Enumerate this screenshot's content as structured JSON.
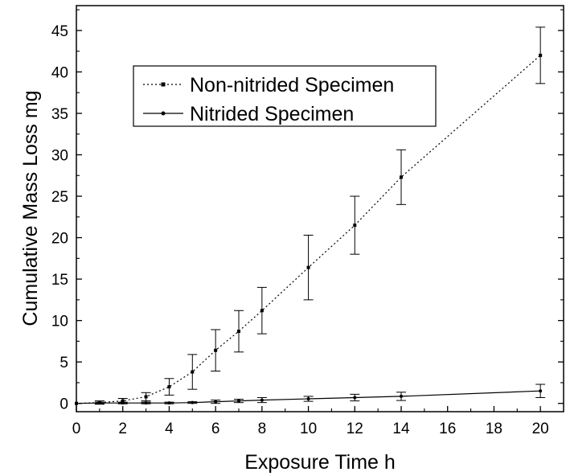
{
  "chart_data": {
    "type": "line",
    "xlabel": "Exposure Time h",
    "ylabel": "Cumulative Mass Loss mg",
    "xlim": [
      0,
      21
    ],
    "ylim": [
      -1,
      48
    ],
    "xticks": [
      0,
      2,
      4,
      6,
      8,
      10,
      12,
      14,
      16,
      18,
      20
    ],
    "yticks": [
      0,
      5,
      10,
      15,
      20,
      25,
      30,
      35,
      40,
      45
    ],
    "legend_position": "top-left",
    "series": [
      {
        "name": "Non-nitrided Specimen",
        "line_style": "dotted",
        "marker": "square",
        "x": [
          0,
          1,
          2,
          3,
          4,
          5,
          6,
          7,
          8,
          10,
          12,
          14,
          20
        ],
        "y": [
          0,
          0.1,
          0.3,
          0.8,
          2.0,
          3.8,
          6.4,
          8.7,
          11.2,
          16.4,
          21.5,
          27.3,
          42.0
        ],
        "error": [
          0,
          0.2,
          0.3,
          0.5,
          1.0,
          2.1,
          2.5,
          2.5,
          2.8,
          3.9,
          3.5,
          3.3,
          3.4
        ]
      },
      {
        "name": "Nitrided Specimen",
        "line_style": "solid",
        "marker": "circle",
        "x": [
          0,
          1,
          2,
          3,
          4,
          5,
          6,
          7,
          8,
          10,
          12,
          14,
          20
        ],
        "y": [
          0,
          0.05,
          0.05,
          0.05,
          0.05,
          0.1,
          0.2,
          0.3,
          0.4,
          0.55,
          0.7,
          0.85,
          1.5
        ],
        "error": [
          0,
          0.1,
          0.1,
          0.1,
          0.1,
          0.1,
          0.2,
          0.2,
          0.3,
          0.3,
          0.4,
          0.5,
          0.8
        ]
      }
    ]
  }
}
